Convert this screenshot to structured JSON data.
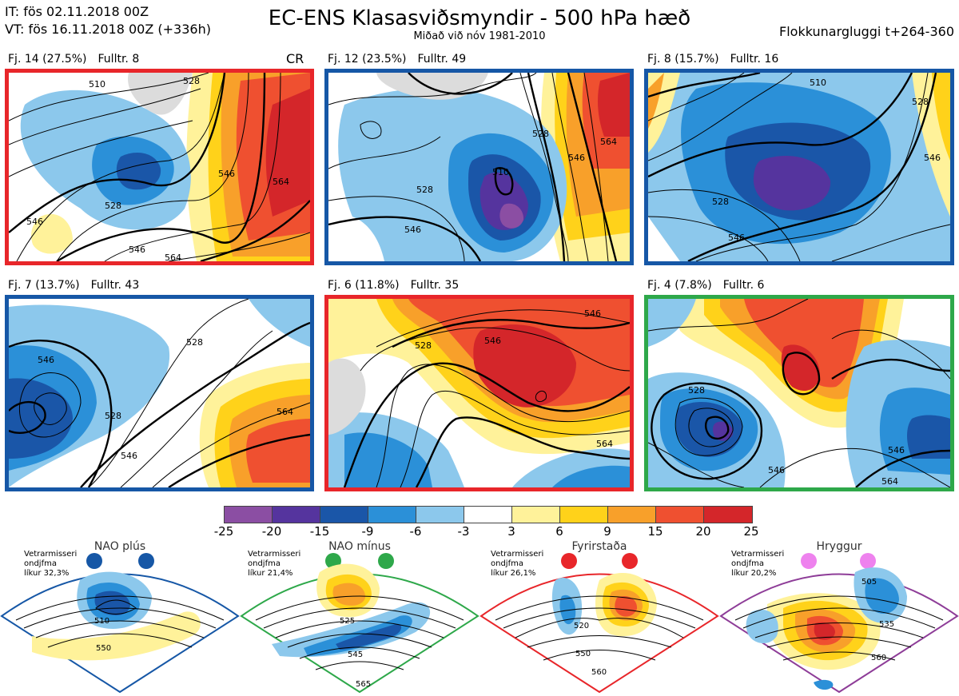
{
  "header": {
    "it_line": "IT: fös 02.11.2018 00Z",
    "vt_line": "VT: fös 16.11.2018 00Z  (+336h)",
    "title": "EC-ENS Klasasviðsmyndir - 500 hPa hæð",
    "subtitle": "Miðað við nóv 1981-2010",
    "window": "Flokkunargluggi t+264-360"
  },
  "clusters": [
    {
      "id": "Fj. 14 (27.5%)",
      "members": "Fulltr. 8",
      "flag": "CR",
      "border": "#e8262a",
      "regime": "Fyrirstaða"
    },
    {
      "id": "Fj. 12 (23.5%)",
      "members": "Fulltr. 49",
      "flag": "",
      "border": "#1657a6",
      "regime": "NAO plús"
    },
    {
      "id": "Fj. 8 (15.7%)",
      "members": "Fulltr. 16",
      "flag": "",
      "border": "#1657a6",
      "regime": "NAO plús"
    },
    {
      "id": "Fj. 7 (13.7%)",
      "members": "Fulltr. 43",
      "flag": "",
      "border": "#1657a6",
      "regime": "NAO plús"
    },
    {
      "id": "Fj. 6 (11.8%)",
      "members": "Fulltr. 35",
      "flag": "",
      "border": "#e8262a",
      "regime": "Fyrirstaða"
    },
    {
      "id": "Fj. 4 (7.8%)",
      "members": "Fulltr. 6",
      "flag": "",
      "border": "#2ea84a",
      "regime": "NAO mínus"
    }
  ],
  "panel_contour_labels": [
    [
      "528",
      "546",
      "564",
      "528",
      "546",
      "510",
      "546",
      "564"
    ],
    [
      "528",
      "546",
      "564",
      "510",
      "528",
      "546"
    ],
    [
      "510",
      "528",
      "546",
      "528",
      "546"
    ],
    [
      "546",
      "528",
      "546",
      "564",
      "528"
    ],
    [
      "528",
      "546",
      "564",
      "546"
    ],
    [
      "528",
      "546",
      "564",
      "546"
    ]
  ],
  "colorbar": {
    "ticks": [
      "-25",
      "-20",
      "-15",
      "-9",
      "-6",
      "-3",
      "3",
      "6",
      "9",
      "15",
      "20",
      "25"
    ],
    "colors": [
      "#8b4ea3",
      "#55349e",
      "#1a56a8",
      "#2b90d8",
      "#8cc8ec",
      "#ffffff",
      "#fff29a",
      "#ffd21a",
      "#f8a02a",
      "#ef5030",
      "#d4262a"
    ]
  },
  "regimes": [
    {
      "name": "NAO plús",
      "info": [
        "Vetrarmisseri",
        "ondjfma",
        "líkur 32,3%"
      ],
      "color": "#1657a6",
      "labels": [
        "510",
        "550"
      ]
    },
    {
      "name": "NAO mínus",
      "info": [
        "Vetrarmisseri",
        "ondjfma",
        "líkur 21,4%"
      ],
      "color": "#2ea84a",
      "labels": [
        "525",
        "545",
        "565"
      ]
    },
    {
      "name": "Fyrirstaða",
      "info": [
        "Vetrarmisseri",
        "ondjfma",
        "líkur 26,1%"
      ],
      "color": "#e8262a",
      "labels": [
        "520",
        "550",
        "560"
      ]
    },
    {
      "name": "Hryggur",
      "info": [
        "Vetrarmisseri",
        "ondjfma",
        "líkur 20,2%"
      ],
      "color": "#8e3d98",
      "labels": [
        "505",
        "535",
        "560"
      ]
    }
  ]
}
